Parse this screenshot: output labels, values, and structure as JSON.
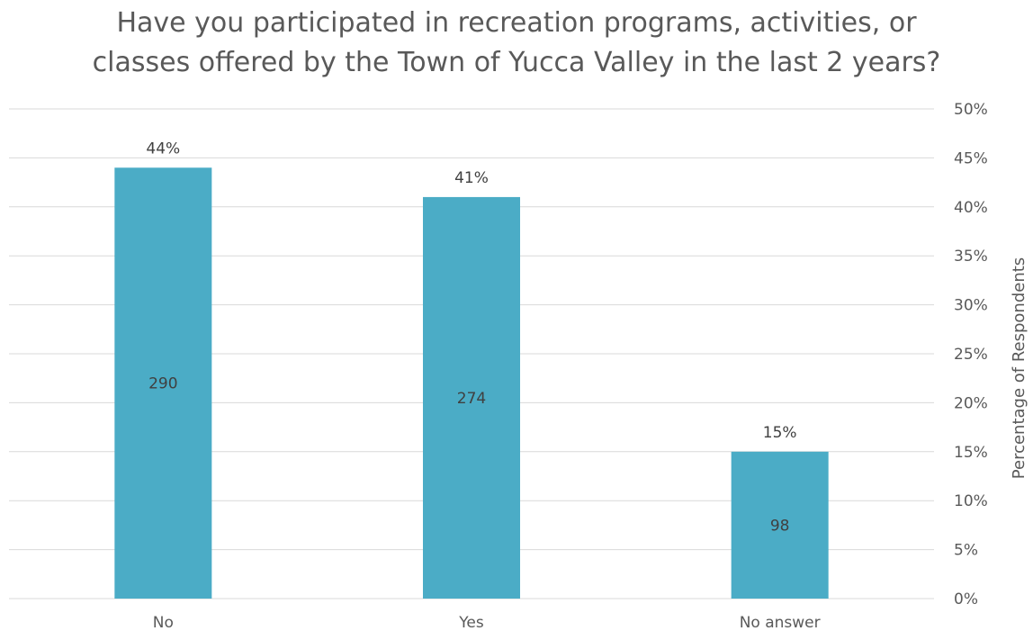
{
  "chart_data": {
    "type": "bar",
    "title_lines": [
      "Have you participated in recreation programs, activities, or",
      "classes offered by the Town of Yucca Valley in the last 2 years?"
    ],
    "categories": [
      "No",
      "Yes",
      "No answer"
    ],
    "series": [
      {
        "values": [
          44,
          41,
          15
        ],
        "percent_labels": [
          "44%",
          "41%",
          "15%"
        ],
        "count_labels": [
          "290",
          "274",
          "98"
        ]
      }
    ],
    "xlabel": "",
    "ylabel": "Percentage of Respondents",
    "y_axis_side": "right",
    "ylim": [
      0,
      50
    ],
    "yticks": [
      0,
      5,
      10,
      15,
      20,
      25,
      30,
      35,
      40,
      45,
      50
    ],
    "ytick_labels": [
      "0%",
      "5%",
      "10%",
      "15%",
      "20%",
      "25%",
      "30%",
      "35%",
      "40%",
      "45%",
      "50%"
    ],
    "grid": true,
    "colors": {
      "bar": "#4bacc6",
      "grid": "#d9d9d9"
    }
  }
}
